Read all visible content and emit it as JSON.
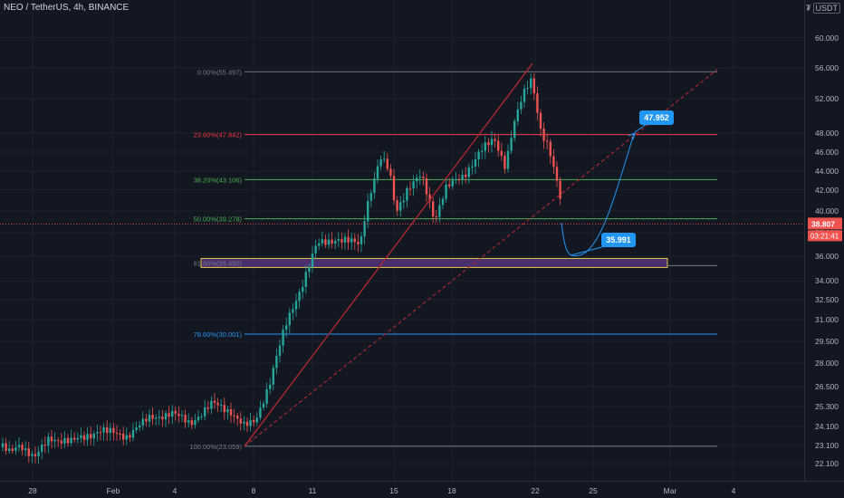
{
  "header": {
    "title": "NEO / TetherUS, 4h, BINANCE",
    "currency_prefix": "₮",
    "currency": "USDT"
  },
  "price_scale": {
    "ticks": [
      "60.000",
      "56.000",
      "52.000",
      "48.000",
      "46.000",
      "44.000",
      "42.000",
      "40.000",
      "38.000",
      "36.000",
      "34.000",
      "32.500",
      "31.000",
      "29.500",
      "28.000",
      "26.500",
      "25.300",
      "24.100",
      "23.100",
      "22.100"
    ],
    "current_price": "38.807",
    "countdown": "03:21:41"
  },
  "time_scale": {
    "labels": [
      "28",
      "Feb",
      "4",
      "8",
      "11",
      "15",
      "18",
      "22",
      "25",
      "Mar",
      "4"
    ]
  },
  "fib_levels": [
    {
      "label": "0.00%(55.497)",
      "color": "#787b86"
    },
    {
      "label": "23.60%(47.842)",
      "color": "#f23645"
    },
    {
      "label": "38.20%(43.106)",
      "color": "#4caf50"
    },
    {
      "label": "50.00%(39.278)",
      "color": "#4caf50"
    },
    {
      "label": "61.80%(35.450)",
      "color": "#787b86"
    },
    {
      "label": "78.60%(30.001)",
      "color": "#2196f3"
    },
    {
      "label": "100.00%(23.059)",
      "color": "#787b86"
    }
  ],
  "callouts": {
    "target": "47.952",
    "support": "35.991"
  },
  "colors": {
    "background": "#131722",
    "up": "#26a69a",
    "down": "#ef5350",
    "callout": "#2196f3",
    "trend": "#b22833",
    "zone": "#4a2f6e",
    "zone_border": "#e6c84a"
  }
}
